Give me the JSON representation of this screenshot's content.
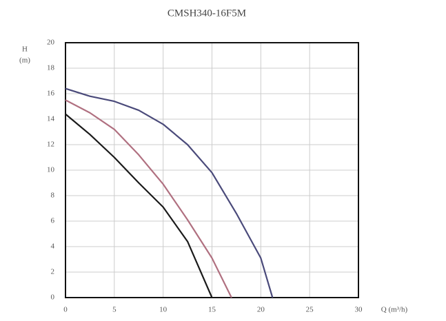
{
  "chart_data": {
    "type": "line",
    "title": "CMSH340-16F5M",
    "ylabel": "H",
    "yunit": "(m)",
    "xlabel": "Q (m³/h)",
    "xlim": [
      0,
      30
    ],
    "ylim": [
      0,
      20
    ],
    "xticks": [
      0,
      5,
      10,
      15,
      20,
      25,
      30
    ],
    "yticks": [
      0,
      2,
      4,
      6,
      8,
      10,
      12,
      14,
      16,
      18,
      20
    ],
    "grid": true,
    "series": [
      {
        "color": "#1a1a1a",
        "x": [
          0,
          2.5,
          5,
          7.5,
          10,
          12.5,
          15
        ],
        "values": [
          14.4,
          12.8,
          11,
          9,
          7.1,
          4.4,
          0
        ]
      },
      {
        "color": "#b07080",
        "x": [
          0,
          2.5,
          5,
          7.5,
          10,
          12.5,
          15,
          17
        ],
        "values": [
          15.5,
          14.5,
          13.2,
          11.2,
          8.9,
          6.1,
          3.1,
          0
        ]
      },
      {
        "color": "#4a4a7a",
        "x": [
          0,
          2.5,
          5,
          7.5,
          10,
          12.5,
          15,
          17.5,
          20,
          21.2
        ],
        "values": [
          16.4,
          15.8,
          15.4,
          14.7,
          13.6,
          12,
          9.8,
          6.6,
          3.1,
          0
        ]
      }
    ]
  }
}
